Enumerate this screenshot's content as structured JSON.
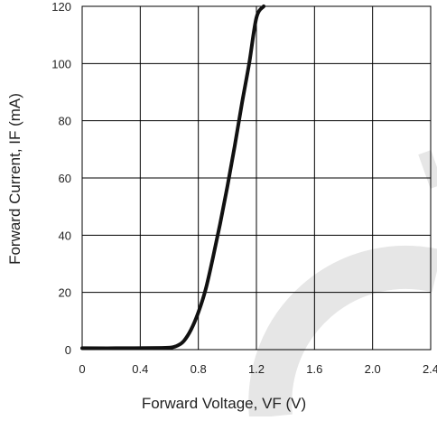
{
  "chart_data": {
    "type": "line",
    "title": "",
    "xlabel": "Forward Voltage, VF (V)",
    "ylabel": "Forward Current, IF (mA)",
    "xlim": [
      0,
      2.4
    ],
    "ylim": [
      0,
      120
    ],
    "x_ticks": [
      "0",
      "0.4",
      "0.8",
      "1.2",
      "1.6",
      "2.0",
      "2.4"
    ],
    "y_ticks": [
      "0",
      "20",
      "40",
      "60",
      "80",
      "100",
      "120"
    ],
    "grid": true,
    "legend": "none",
    "series": [
      {
        "color": "#111111",
        "x": [
          0,
          0.3,
          0.55,
          0.62,
          0.66,
          0.7,
          0.75,
          0.8,
          0.85,
          0.9,
          0.95,
          1.0,
          1.05,
          1.1,
          1.15,
          1.2,
          1.25
        ],
        "y": [
          0.5,
          0.5,
          0.6,
          0.8,
          1.5,
          3,
          7,
          13,
          21,
          32,
          44,
          57,
          71,
          86,
          100,
          116,
          120
        ]
      }
    ]
  },
  "watermark": {
    "color": "#e6e6e6"
  }
}
